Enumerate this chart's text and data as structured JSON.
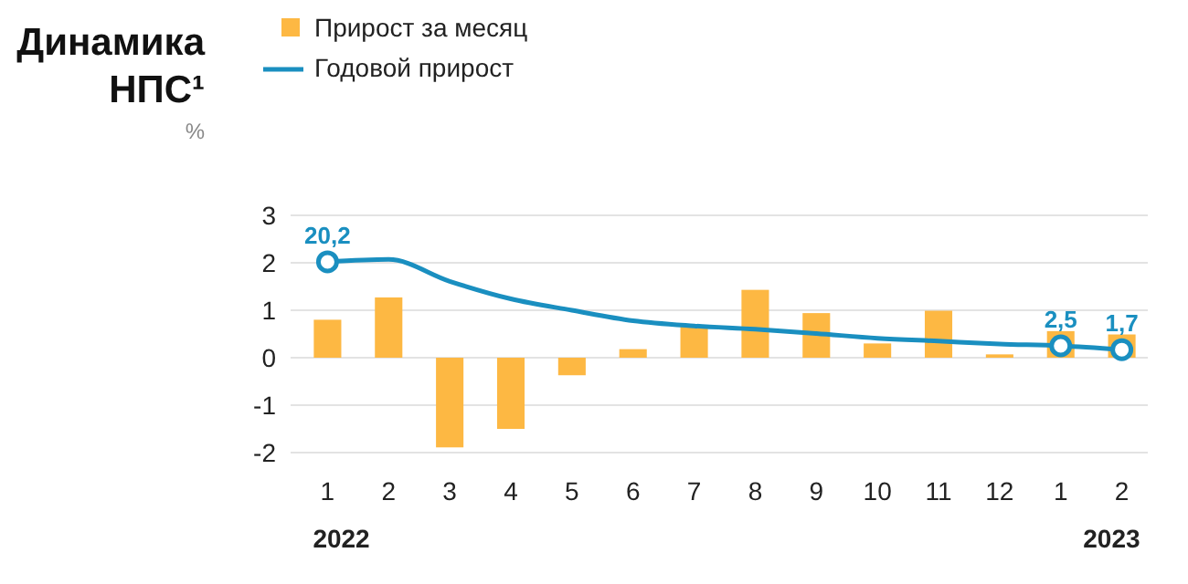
{
  "chart_data": {
    "type": "bar",
    "title": "Динамика НПС¹",
    "ylabel": "%",
    "categories": [
      "1",
      "2",
      "3",
      "4",
      "5",
      "6",
      "7",
      "8",
      "9",
      "10",
      "11",
      "12",
      "1",
      "2"
    ],
    "series": [
      {
        "name": "Прирост за месяц",
        "color": "#fdb843",
        "values": [
          0.8,
          1.27,
          -1.89,
          -1.5,
          -0.37,
          0.18,
          0.66,
          1.43,
          0.94,
          0.3,
          0.99,
          0.07,
          0.56,
          0.49
        ]
      },
      {
        "name": "Годовой прирост",
        "type": "line",
        "axis": "y2",
        "color": "#1a8fc0",
        "values": [
          20.2,
          20.7,
          16.1,
          12.4,
          10.0,
          7.8,
          6.7,
          6.0,
          5.1,
          4.1,
          3.5,
          2.9,
          2.5,
          1.7
        ],
        "value_labels": [
          "20,2",
          null,
          null,
          null,
          null,
          null,
          null,
          null,
          null,
          null,
          null,
          null,
          "2,5",
          "1,7"
        ]
      }
    ],
    "ylim": [
      -2,
      3
    ],
    "yticks": [
      -2,
      -1,
      0,
      1,
      2,
      3
    ],
    "y2lim": [
      -20,
      30
    ],
    "grid": "y",
    "legend": "top",
    "annotations": [
      "2022",
      "2023"
    ]
  }
}
